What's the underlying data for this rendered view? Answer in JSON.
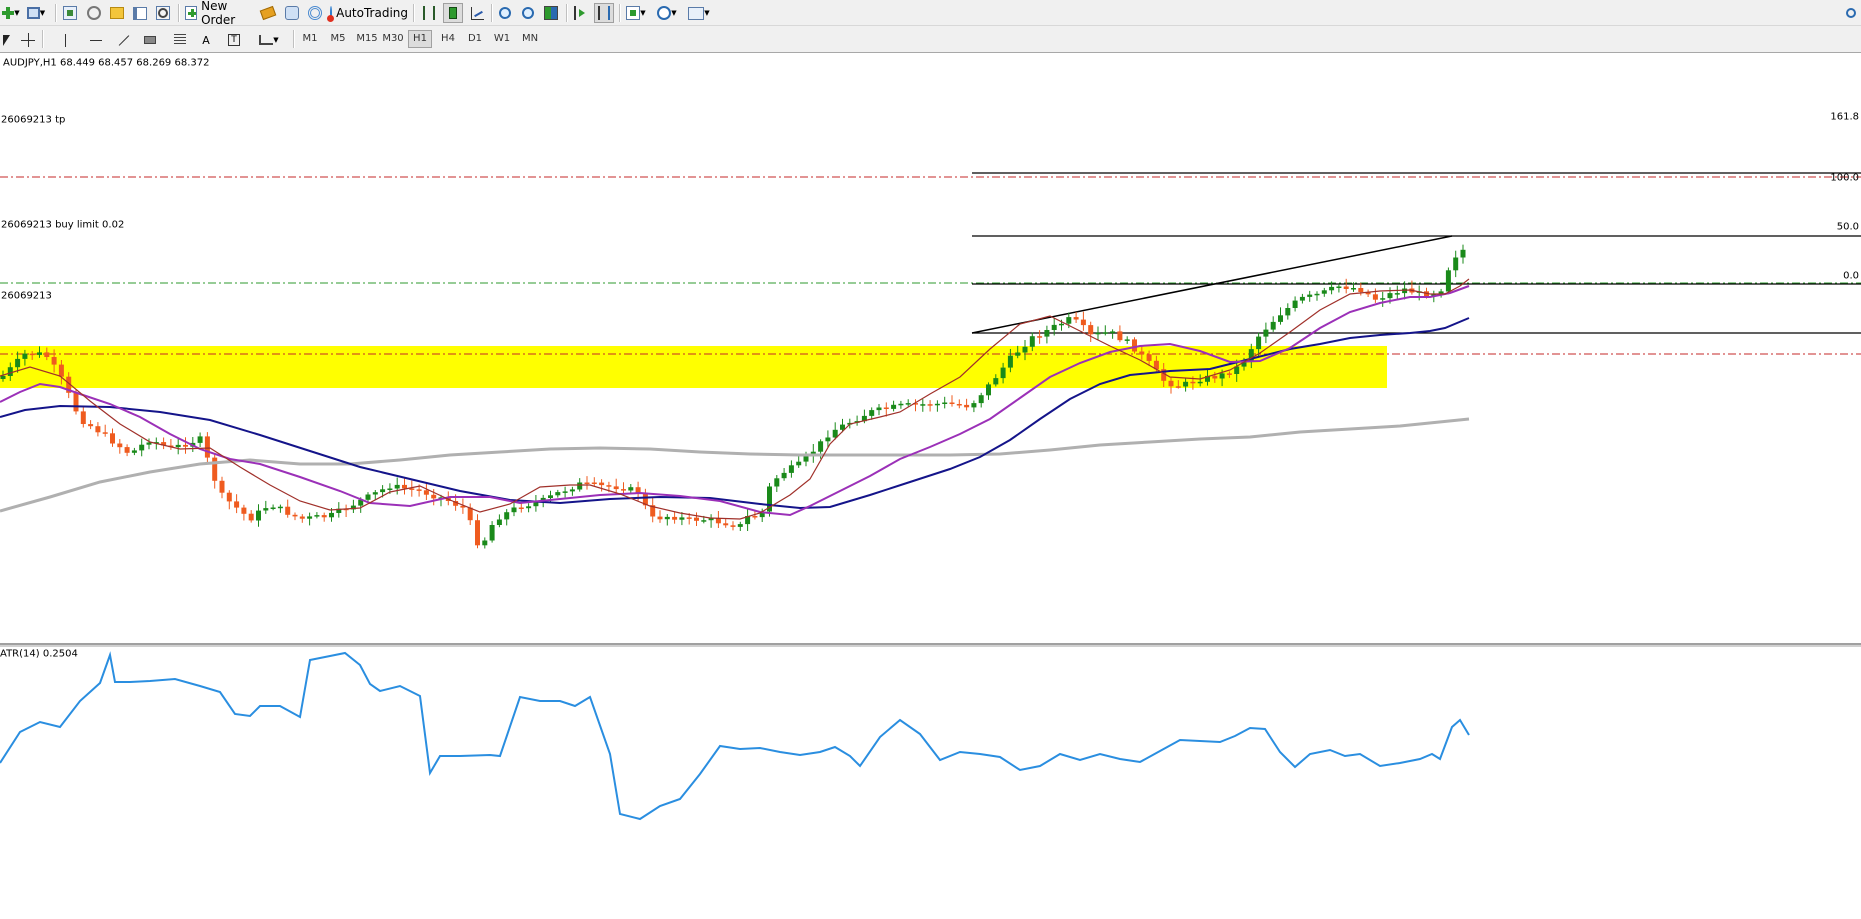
{
  "toolbar": {
    "new_order_label": "New Order",
    "autotrading_label": "AutoTrading",
    "timeframes": [
      "M1",
      "M5",
      "M15",
      "M30",
      "H1",
      "H4",
      "D1",
      "W1",
      "MN"
    ],
    "active_timeframe": "H1",
    "icons": [
      "new-chart-icon",
      "profiles-icon",
      "market-watch-icon",
      "navigator-icon",
      "data-window-icon",
      "terminal-icon",
      "strategy-tester-icon",
      "new-order-icon",
      "metaeditor-icon",
      "options-icon",
      "signals-icon",
      "autotrading-icon",
      "bar-chart-icon",
      "candlestick-icon",
      "line-chart-icon",
      "zoom-in-icon",
      "zoom-out-icon",
      "tile-windows-icon",
      "auto-scroll-icon",
      "chart-shift-icon",
      "indicators-icon",
      "periods-icon",
      "templates-icon",
      "search-icon"
    ],
    "drawing_icons": [
      "cursor-icon",
      "crosshair-icon",
      "vertical-line-icon",
      "horizontal-line-icon",
      "trendline-icon",
      "channel-icon",
      "fibonacci-icon",
      "text-icon",
      "text-label-icon",
      "arrows-icon"
    ]
  },
  "chart": {
    "symbol_info": "AUDJPY,H1  68.449 68.457 68.269 68.372",
    "tp_label": "26069213 tp",
    "buy_limit_label": "26069213 buy limit 0.02",
    "order_label": "26069213",
    "fib_levels": [
      "161.8",
      "100.0",
      "50.0",
      "0.0"
    ],
    "indicator_label": "ATR(14) 0.2504",
    "colors": {
      "bull": "#1a8a1a",
      "bear": "#ef5b1f",
      "zone": "#ffff00",
      "tp_line": "#c62828",
      "buy_limit_line": "#2e9a2e",
      "ma_fast": "#a0302a",
      "ma_mid": "#9b30b8",
      "ma_slow": "#14148a",
      "ma_long": "#b0b0b0",
      "atr": "#2a8ee0"
    }
  }
}
